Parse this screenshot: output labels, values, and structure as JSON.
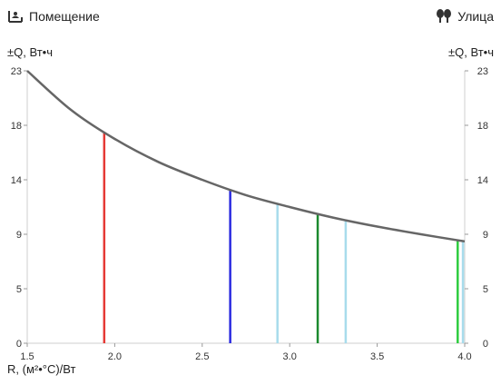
{
  "header": {
    "left_label": "Помещение",
    "left_icon": "room-icon",
    "right_label": "Улица",
    "right_icon": "trees-icon"
  },
  "chart_data": {
    "type": "line",
    "ylabel_left": "±Q, Вт•ч",
    "ylabel_right": "±Q, Вт•ч",
    "xlabel": "R, (м²•°С)/Вт",
    "xlim": [
      1.5,
      4.0
    ],
    "ylim": [
      0,
      23
    ],
    "x_ticks": [
      "1.5",
      "2.0",
      "2.5",
      "3.0",
      "3.5",
      "4.0"
    ],
    "y_ticks": [
      "0",
      "5",
      "9",
      "14",
      "18",
      "23"
    ],
    "y_tick_values": [
      0,
      4.6,
      9.2,
      13.8,
      18.4,
      23
    ],
    "curve": {
      "x": [
        1.5,
        1.75,
        2.0,
        2.25,
        2.5,
        2.75,
        3.0,
        3.25,
        3.5,
        3.75,
        4.0
      ],
      "y": [
        23,
        19.7,
        17.25,
        15.3,
        13.8,
        12.5,
        11.5,
        10.6,
        9.85,
        9.2,
        8.6
      ]
    },
    "markers": [
      {
        "x": 1.94,
        "y": 17.8,
        "color": "#e53935"
      },
      {
        "x": 2.66,
        "y": 12.95,
        "color": "#2a2ae0"
      },
      {
        "x": 2.93,
        "y": 11.75,
        "color": "#a8dcec"
      },
      {
        "x": 3.16,
        "y": 10.9,
        "color": "#1b8a2e"
      },
      {
        "x": 3.32,
        "y": 10.4,
        "color": "#a8dcec"
      },
      {
        "x": 3.96,
        "y": 8.7,
        "color": "#2ecc40"
      },
      {
        "x": 3.99,
        "y": 8.62,
        "color": "#a8dcec"
      }
    ],
    "grid": false
  }
}
